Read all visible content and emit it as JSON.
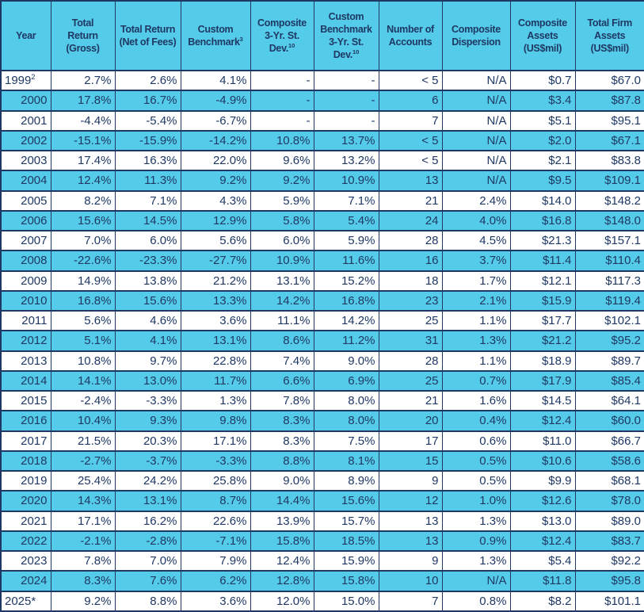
{
  "table": {
    "colors": {
      "header_bg": "#54CBE8",
      "stripe_bg": "#54CBE8",
      "row_bg": "#FFFFFF",
      "text": "#1F3864",
      "border": "#1E3765"
    },
    "columns": [
      {
        "name": "year",
        "label_lines": [
          {
            "text": "Year"
          }
        ]
      },
      {
        "name": "total-return-gross",
        "label_lines": [
          {
            "text": "Total"
          },
          {
            "text": "Return"
          },
          {
            "text": "(Gross)"
          }
        ]
      },
      {
        "name": "total-return-net",
        "label_lines": [
          {
            "text": "Total Return"
          },
          {
            "text": "(Net of Fees)"
          }
        ]
      },
      {
        "name": "custom-benchmark",
        "label_lines": [
          {
            "text": "Custom"
          },
          {
            "text": "Benchmark",
            "sup": "3"
          }
        ]
      },
      {
        "name": "composite-3yr-std-dev",
        "label_lines": [
          {
            "text": "Composite"
          },
          {
            "text": "3-Yr. St."
          },
          {
            "text": "Dev.",
            "sup": "10"
          }
        ]
      },
      {
        "name": "custom-benchmark-3yr-std-dev",
        "label_lines": [
          {
            "text": "Custom"
          },
          {
            "text": "Benchmark"
          },
          {
            "text": "3-Yr. St."
          },
          {
            "text": "Dev.",
            "sup": "10"
          }
        ]
      },
      {
        "name": "number-of-accounts",
        "label_lines": [
          {
            "text": "Number of"
          },
          {
            "text": "Accounts"
          }
        ]
      },
      {
        "name": "composite-dispersion",
        "label_lines": [
          {
            "text": "Composite"
          },
          {
            "text": "Dispersion"
          }
        ]
      },
      {
        "name": "composite-assets",
        "label_lines": [
          {
            "text": "Composite"
          },
          {
            "text": "Assets"
          },
          {
            "text": "(US$mil)"
          }
        ]
      },
      {
        "name": "total-firm-assets",
        "label_lines": [
          {
            "text": "Total Firm"
          },
          {
            "text": "Assets"
          },
          {
            "text": "(US$mil)"
          }
        ]
      }
    ],
    "rows": [
      {
        "year": "1999",
        "year_sup": "2",
        "year_align": "left",
        "values": [
          "2.7%",
          "2.6%",
          "4.1%",
          "-",
          "-",
          "< 5",
          "N/A",
          "$0.7",
          "$67.0"
        ]
      },
      {
        "year": "2000",
        "values": [
          "17.8%",
          "16.7%",
          "-4.9%",
          "-",
          "-",
          "6",
          "N/A",
          "$3.4",
          "$87.8"
        ]
      },
      {
        "year": "2001",
        "values": [
          "-4.4%",
          "-5.4%",
          "-6.7%",
          "-",
          "-",
          "7",
          "N/A",
          "$5.1",
          "$95.1"
        ]
      },
      {
        "year": "2002",
        "values": [
          "-15.1%",
          "-15.9%",
          "-14.2%",
          "10.8%",
          "13.7%",
          "< 5",
          "N/A",
          "$2.0",
          "$67.1"
        ]
      },
      {
        "year": "2003",
        "values": [
          "17.4%",
          "16.3%",
          "22.0%",
          "9.6%",
          "13.2%",
          "< 5",
          "N/A",
          "$2.1",
          "$83.8"
        ]
      },
      {
        "year": "2004",
        "values": [
          "12.4%",
          "11.3%",
          "9.2%",
          "9.2%",
          "10.9%",
          "13",
          "N/A",
          "$9.5",
          "$109.1"
        ]
      },
      {
        "year": "2005",
        "values": [
          "8.2%",
          "7.1%",
          "4.3%",
          "5.9%",
          "7.1%",
          "21",
          "2.4%",
          "$14.0",
          "$148.2"
        ]
      },
      {
        "year": "2006",
        "values": [
          "15.6%",
          "14.5%",
          "12.9%",
          "5.8%",
          "5.4%",
          "24",
          "4.0%",
          "$16.8",
          "$148.0"
        ]
      },
      {
        "year": "2007",
        "values": [
          "7.0%",
          "6.0%",
          "5.6%",
          "6.0%",
          "5.9%",
          "28",
          "4.5%",
          "$21.3",
          "$157.1"
        ]
      },
      {
        "year": "2008",
        "values": [
          "-22.6%",
          "-23.3%",
          "-27.7%",
          "10.9%",
          "11.6%",
          "16",
          "3.7%",
          "$11.4",
          "$110.4"
        ]
      },
      {
        "year": "2009",
        "values": [
          "14.9%",
          "13.8%",
          "21.2%",
          "13.1%",
          "15.2%",
          "18",
          "1.7%",
          "$12.1",
          "$117.3"
        ]
      },
      {
        "year": "2010",
        "values": [
          "16.8%",
          "15.6%",
          "13.3%",
          "14.2%",
          "16.8%",
          "23",
          "2.1%",
          "$15.9",
          "$119.4"
        ]
      },
      {
        "year": "2011",
        "values": [
          "5.6%",
          "4.6%",
          "3.6%",
          "11.1%",
          "14.2%",
          "25",
          "1.1%",
          "$17.7",
          "$102.1"
        ]
      },
      {
        "year": "2012",
        "values": [
          "5.1%",
          "4.1%",
          "13.1%",
          "8.6%",
          "11.2%",
          "31",
          "1.3%",
          "$21.2",
          "$95.2"
        ]
      },
      {
        "year": "2013",
        "values": [
          "10.8%",
          "9.7%",
          "22.8%",
          "7.4%",
          "9.0%",
          "28",
          "1.1%",
          "$18.9",
          "$89.7"
        ]
      },
      {
        "year": "2014",
        "values": [
          "14.1%",
          "13.0%",
          "11.7%",
          "6.6%",
          "6.9%",
          "25",
          "0.7%",
          "$17.9",
          "$85.4"
        ]
      },
      {
        "year": "2015",
        "values": [
          "-2.4%",
          "-3.3%",
          "1.3%",
          "7.8%",
          "8.0%",
          "21",
          "1.6%",
          "$14.5",
          "$64.1"
        ]
      },
      {
        "year": "2016",
        "values": [
          "10.4%",
          "9.3%",
          "9.8%",
          "8.3%",
          "8.0%",
          "20",
          "0.4%",
          "$12.4",
          "$60.0"
        ]
      },
      {
        "year": "2017",
        "values": [
          "21.5%",
          "20.3%",
          "17.1%",
          "8.3%",
          "7.5%",
          "17",
          "0.6%",
          "$11.0",
          "$66.7"
        ]
      },
      {
        "year": "2018",
        "values": [
          "-2.7%",
          "-3.7%",
          "-3.3%",
          "8.8%",
          "8.1%",
          "15",
          "0.5%",
          "$10.6",
          "$58.6"
        ]
      },
      {
        "year": "2019",
        "values": [
          "25.4%",
          "24.2%",
          "25.8%",
          "9.0%",
          "8.9%",
          "9",
          "0.5%",
          "$9.9",
          "$68.1"
        ]
      },
      {
        "year": "2020",
        "values": [
          "14.3%",
          "13.1%",
          "8.7%",
          "14.4%",
          "15.6%",
          "12",
          "1.0%",
          "$12.6",
          "$78.0"
        ]
      },
      {
        "year": "2021",
        "values": [
          "17.1%",
          "16.2%",
          "22.6%",
          "13.9%",
          "15.7%",
          "13",
          "1.3%",
          "$13.0",
          "$89.0"
        ]
      },
      {
        "year": "2022",
        "values": [
          "-2.1%",
          "-2.8%",
          "-7.1%",
          "15.8%",
          "18.5%",
          "13",
          "0.9%",
          "$12.4",
          "$83.7"
        ]
      },
      {
        "year": "2023",
        "values": [
          "7.8%",
          "7.0%",
          "7.9%",
          "12.4%",
          "15.9%",
          "9",
          "1.3%",
          "$5.4",
          "$92.2"
        ]
      },
      {
        "year": "2024",
        "values": [
          "8.3%",
          "7.6%",
          "6.2%",
          "12.8%",
          "15.8%",
          "10",
          "N/A",
          "$11.8",
          "$95.8"
        ]
      },
      {
        "year": "2025*",
        "year_align": "left",
        "values": [
          "9.2%",
          "8.8%",
          "3.6%",
          "12.0%",
          "15.0%",
          "7",
          "0.8%",
          "$8.2",
          "$101.1"
        ]
      }
    ]
  }
}
